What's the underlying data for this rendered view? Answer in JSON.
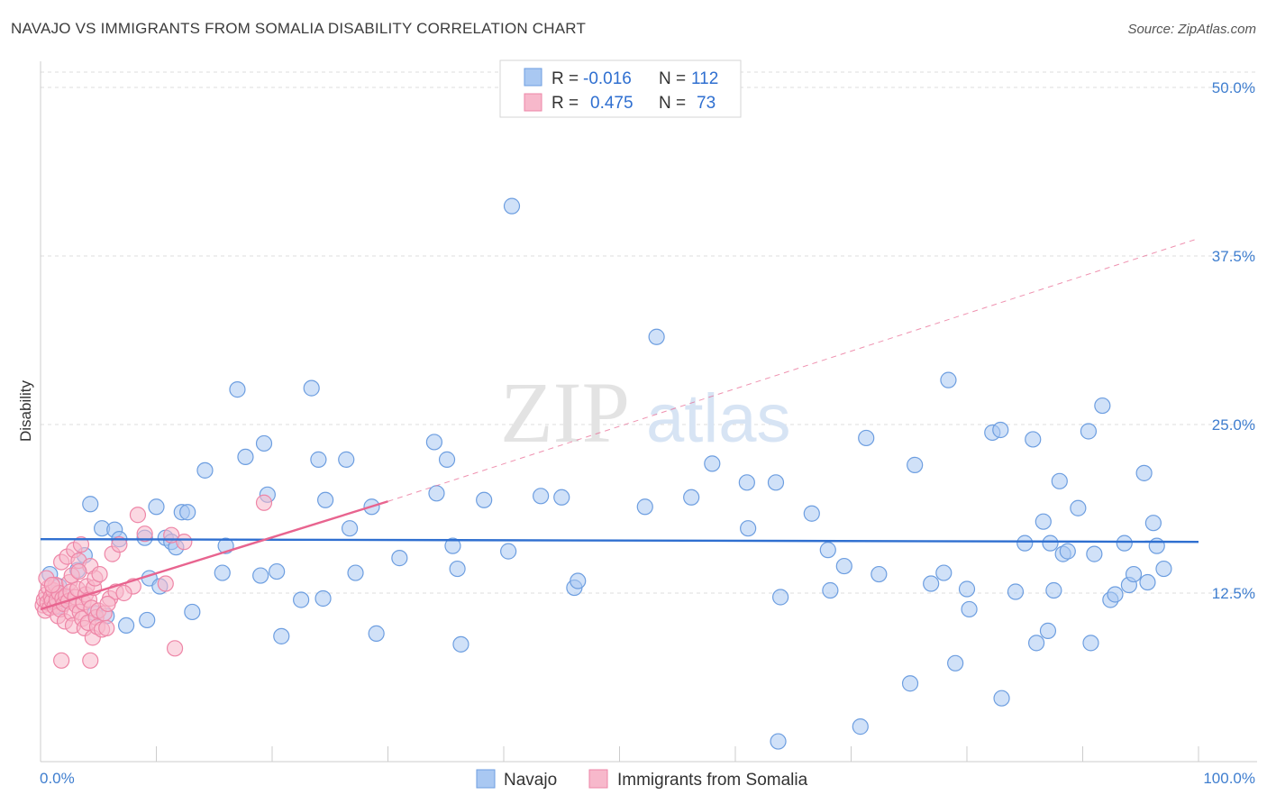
{
  "title": "NAVAJO VS IMMIGRANTS FROM SOMALIA DISABILITY CORRELATION CHART",
  "source": "Source: ZipAtlas.com",
  "watermark": {
    "zip": "ZIP",
    "atlas": "atlas"
  },
  "colors": {
    "navajo_fill": "#a9c8f2",
    "navajo_stroke": "#6d9ee0",
    "navajo_line": "#2f6fd0",
    "somalia_fill": "#f7b8cb",
    "somalia_stroke": "#ee86a7",
    "somalia_line": "#e8648f",
    "grid": "#dddddd",
    "tick_text": "#3f7ecf"
  },
  "legend": {
    "rows": [
      {
        "r_label": "R =",
        "r_value": "-0.016",
        "n_label": "N =",
        "n_value": "112"
      },
      {
        "r_label": "R =",
        "r_value": "0.475",
        "n_label": "N =",
        "n_value": "73"
      }
    ]
  },
  "chart_data": {
    "type": "scatter",
    "title": "NAVAJO VS IMMIGRANTS FROM SOMALIA DISABILITY CORRELATION CHART",
    "xlabel": "",
    "ylabel": "Disability",
    "xlim": [
      0,
      100
    ],
    "ylim": [
      0,
      50
    ],
    "x_tick_labels": {
      "left": "0.0%",
      "right": "100.0%"
    },
    "y_ticks": [
      {
        "value": 12.5,
        "label": "12.5%"
      },
      {
        "value": 25.0,
        "label": "25.0%"
      },
      {
        "value": 37.5,
        "label": "37.5%"
      },
      {
        "value": 50.0,
        "label": "50.0%"
      }
    ],
    "series": [
      {
        "name": "Navajo",
        "r": -0.016,
        "n": 112,
        "trend": {
          "x0": 0,
          "y0": 16.5,
          "x1": 100,
          "y1": 16.3,
          "dashed_to": null
        },
        "points": [
          [
            0.8,
            13.9
          ],
          [
            1.6,
            13.0
          ],
          [
            1.3,
            12.5
          ],
          [
            3.2,
            14.2
          ],
          [
            3.8,
            15.3
          ],
          [
            4.3,
            19.1
          ],
          [
            5.3,
            17.3
          ],
          [
            6.4,
            17.2
          ],
          [
            6.8,
            16.5
          ],
          [
            5.7,
            10.8
          ],
          [
            7.4,
            10.1
          ],
          [
            9.0,
            16.6
          ],
          [
            9.2,
            10.5
          ],
          [
            9.4,
            13.6
          ],
          [
            10.0,
            18.9
          ],
          [
            10.3,
            13.0
          ],
          [
            10.8,
            16.6
          ],
          [
            11.3,
            16.3
          ],
          [
            11.7,
            15.9
          ],
          [
            12.2,
            18.5
          ],
          [
            12.7,
            18.5
          ],
          [
            13.1,
            11.1
          ],
          [
            14.2,
            21.6
          ],
          [
            15.7,
            14.0
          ],
          [
            16.0,
            16.0
          ],
          [
            17.0,
            27.6
          ],
          [
            17.7,
            22.6
          ],
          [
            19.0,
            13.8
          ],
          [
            19.3,
            23.6
          ],
          [
            19.6,
            19.8
          ],
          [
            20.4,
            14.1
          ],
          [
            20.8,
            9.3
          ],
          [
            22.5,
            12.0
          ],
          [
            23.4,
            27.7
          ],
          [
            24.0,
            22.4
          ],
          [
            24.4,
            12.1
          ],
          [
            24.6,
            19.4
          ],
          [
            26.4,
            22.4
          ],
          [
            26.7,
            17.3
          ],
          [
            27.2,
            14.0
          ],
          [
            28.6,
            18.9
          ],
          [
            29.0,
            9.5
          ],
          [
            31.0,
            15.1
          ],
          [
            34.0,
            23.7
          ],
          [
            34.2,
            19.9
          ],
          [
            35.1,
            22.4
          ],
          [
            35.6,
            16.0
          ],
          [
            36.0,
            14.3
          ],
          [
            36.3,
            8.7
          ],
          [
            38.3,
            19.4
          ],
          [
            40.4,
            15.6
          ],
          [
            40.7,
            41.2
          ],
          [
            43.2,
            19.7
          ],
          [
            45.0,
            19.6
          ],
          [
            46.1,
            12.9
          ],
          [
            46.4,
            13.4
          ],
          [
            52.2,
            18.9
          ],
          [
            53.2,
            31.5
          ],
          [
            56.2,
            19.6
          ],
          [
            58.0,
            22.1
          ],
          [
            61.0,
            20.7
          ],
          [
            61.1,
            17.3
          ],
          [
            63.5,
            20.7
          ],
          [
            63.7,
            1.5
          ],
          [
            63.9,
            12.2
          ],
          [
            66.6,
            18.4
          ],
          [
            68.0,
            15.7
          ],
          [
            68.2,
            12.7
          ],
          [
            69.4,
            14.5
          ],
          [
            71.3,
            24.0
          ],
          [
            72.4,
            13.9
          ],
          [
            70.8,
            2.6
          ],
          [
            75.1,
            5.8
          ],
          [
            75.5,
            22.0
          ],
          [
            76.9,
            13.2
          ],
          [
            78.0,
            14.0
          ],
          [
            78.4,
            28.3
          ],
          [
            79.0,
            7.3
          ],
          [
            80.0,
            12.8
          ],
          [
            80.2,
            11.3
          ],
          [
            82.2,
            24.4
          ],
          [
            82.9,
            24.6
          ],
          [
            83.0,
            4.7
          ],
          [
            84.2,
            12.6
          ],
          [
            85.0,
            16.2
          ],
          [
            85.7,
            23.9
          ],
          [
            86.0,
            8.8
          ],
          [
            86.6,
            17.8
          ],
          [
            87.0,
            9.7
          ],
          [
            87.2,
            16.2
          ],
          [
            87.5,
            12.7
          ],
          [
            88.0,
            20.8
          ],
          [
            88.3,
            15.4
          ],
          [
            88.7,
            15.6
          ],
          [
            89.6,
            18.8
          ],
          [
            90.5,
            24.5
          ],
          [
            90.7,
            8.8
          ],
          [
            91.0,
            15.4
          ],
          [
            91.7,
            26.4
          ],
          [
            92.4,
            12.0
          ],
          [
            92.8,
            12.4
          ],
          [
            93.6,
            16.2
          ],
          [
            94.0,
            13.1
          ],
          [
            94.4,
            13.9
          ],
          [
            95.3,
            21.4
          ],
          [
            95.6,
            13.3
          ],
          [
            96.1,
            17.7
          ],
          [
            96.4,
            16.0
          ],
          [
            97.0,
            14.3
          ],
          [
            1.5,
            11.5
          ],
          [
            2.2,
            12.2
          ],
          [
            4.7,
            11.0
          ]
        ]
      },
      {
        "name": "Immigrants from Somalia",
        "r": 0.475,
        "n": 73,
        "trend": {
          "x0": 0,
          "y0": 11.3,
          "x1": 30,
          "y1": 19.3,
          "dashed_to": {
            "x": 100,
            "y": 38.8
          }
        },
        "points": [
          [
            0.2,
            11.6
          ],
          [
            0.3,
            12.0
          ],
          [
            0.4,
            11.2
          ],
          [
            0.5,
            12.4
          ],
          [
            0.6,
            11.8
          ],
          [
            0.7,
            12.9
          ],
          [
            0.8,
            11.4
          ],
          [
            0.9,
            12.2
          ],
          [
            1.0,
            11.9
          ],
          [
            1.1,
            12.7
          ],
          [
            1.2,
            11.5
          ],
          [
            1.3,
            13.1
          ],
          [
            1.4,
            12.0
          ],
          [
            1.5,
            10.8
          ],
          [
            1.6,
            12.5
          ],
          [
            1.7,
            11.3
          ],
          [
            1.8,
            14.8
          ],
          [
            1.9,
            12.1
          ],
          [
            2.0,
            11.7
          ],
          [
            2.1,
            10.4
          ],
          [
            2.2,
            12.3
          ],
          [
            2.3,
            15.2
          ],
          [
            2.4,
            11.9
          ],
          [
            2.5,
            13.3
          ],
          [
            2.6,
            12.6
          ],
          [
            2.7,
            11.0
          ],
          [
            2.8,
            10.1
          ],
          [
            2.9,
            15.7
          ],
          [
            3.0,
            12.2
          ],
          [
            3.1,
            11.6
          ],
          [
            3.2,
            12.8
          ],
          [
            3.3,
            14.9
          ],
          [
            3.4,
            11.1
          ],
          [
            3.5,
            16.1
          ],
          [
            3.6,
            10.6
          ],
          [
            3.7,
            11.8
          ],
          [
            3.8,
            9.9
          ],
          [
            3.9,
            12.4
          ],
          [
            4.0,
            13.0
          ],
          [
            4.1,
            10.3
          ],
          [
            4.2,
            12.0
          ],
          [
            4.3,
            14.5
          ],
          [
            4.4,
            11.4
          ],
          [
            4.5,
            9.2
          ],
          [
            4.6,
            12.9
          ],
          [
            4.7,
            13.6
          ],
          [
            4.8,
            10.7
          ],
          [
            4.9,
            10.0
          ],
          [
            5.0,
            11.2
          ],
          [
            5.1,
            13.9
          ],
          [
            5.3,
            9.8
          ],
          [
            5.5,
            11.0
          ],
          [
            5.7,
            9.9
          ],
          [
            6.0,
            12.1
          ],
          [
            6.2,
            15.4
          ],
          [
            6.5,
            12.6
          ],
          [
            6.8,
            16.1
          ],
          [
            8.0,
            13.0
          ],
          [
            8.4,
            18.3
          ],
          [
            9.0,
            16.9
          ],
          [
            10.8,
            13.2
          ],
          [
            11.3,
            16.8
          ],
          [
            11.6,
            8.4
          ],
          [
            12.4,
            16.3
          ],
          [
            19.3,
            19.2
          ],
          [
            1.8,
            7.5
          ],
          [
            4.3,
            7.5
          ],
          [
            0.5,
            13.6
          ],
          [
            1.0,
            13.1
          ],
          [
            2.7,
            13.8
          ],
          [
            3.3,
            14.1
          ],
          [
            5.8,
            11.7
          ],
          [
            7.2,
            12.5
          ]
        ]
      }
    ]
  },
  "bottom_legend": {
    "items": [
      "Navajo",
      "Immigrants from Somalia"
    ]
  }
}
